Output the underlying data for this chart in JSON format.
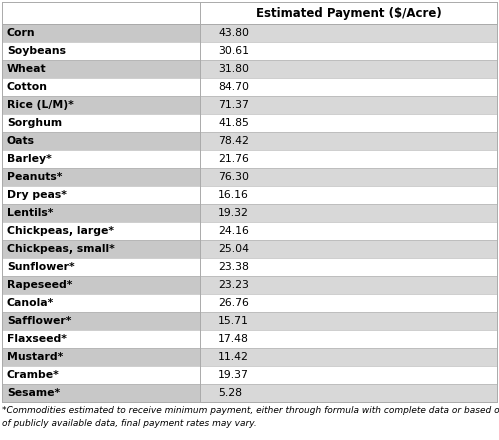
{
  "title": "Estimated Payment ($/Acre)",
  "footnote": "*Commodities estimated to receive minimum payment, either through formula with complete data or based on assumption due to lack\nof publicly available data, final payment rates may vary.",
  "rows": [
    {
      "commodity": "Corn",
      "value": "43.80"
    },
    {
      "commodity": "Soybeans",
      "value": "30.61"
    },
    {
      "commodity": "Wheat",
      "value": "31.80"
    },
    {
      "commodity": "Cotton",
      "value": "84.70"
    },
    {
      "commodity": "Rice (L/M)*",
      "value": "71.37"
    },
    {
      "commodity": "Sorghum",
      "value": "41.85"
    },
    {
      "commodity": "Oats",
      "value": "78.42"
    },
    {
      "commodity": "Barley*",
      "value": "21.76"
    },
    {
      "commodity": "Peanuts*",
      "value": "76.30"
    },
    {
      "commodity": "Dry peas*",
      "value": "16.16"
    },
    {
      "commodity": "Lentils*",
      "value": "19.32"
    },
    {
      "commodity": "Chickpeas, large*",
      "value": "24.16"
    },
    {
      "commodity": "Chickpeas, small*",
      "value": "25.04"
    },
    {
      "commodity": "Sunflower*",
      "value": "23.38"
    },
    {
      "commodity": "Rapeseed*",
      "value": "23.23"
    },
    {
      "commodity": "Canola*",
      "value": "26.76"
    },
    {
      "commodity": "Safflower*",
      "value": "15.71"
    },
    {
      "commodity": "Flaxseed*",
      "value": "17.48"
    },
    {
      "commodity": "Mustard*",
      "value": "11.42"
    },
    {
      "commodity": "Crambe*",
      "value": "19.37"
    },
    {
      "commodity": "Sesame*",
      "value": "5.28"
    }
  ],
  "col_split": 0.4,
  "header_bg": "#ffffff",
  "dark_bg": "#c8c8c8",
  "light_bg": "#ffffff",
  "right_dark_bg": "#d8d8d8",
  "right_light_bg": "#ffffff",
  "border_color": "#aaaaaa",
  "text_color": "#000000",
  "title_fontsize": 8.5,
  "cell_fontsize": 7.8,
  "footnote_fontsize": 6.5
}
